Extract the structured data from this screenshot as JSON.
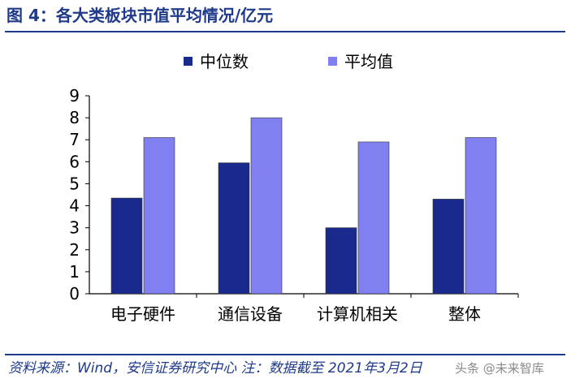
{
  "figure_title": "图 4：各大类板块市值平均情况/亿元",
  "source_note": "资料来源：Wind，安信证券研究中心  注：数据截至 2021年3月2日",
  "watermark": "头条 @未来智库",
  "colors": {
    "median": "#1a2a8c",
    "mean": "#8080f0",
    "title": "#1f3a8a"
  },
  "chart_data": {
    "type": "bar",
    "categories": [
      "电子硬件",
      "通信设备",
      "计算机相关",
      "整体"
    ],
    "series": [
      {
        "name": "中位数",
        "values": [
          4.35,
          5.95,
          3.0,
          4.3
        ]
      },
      {
        "name": "平均值",
        "values": [
          7.1,
          8.0,
          6.9,
          7.1
        ]
      }
    ],
    "ylim": [
      0,
      9
    ],
    "yticks": [
      "0",
      "1",
      "2",
      "3",
      "4",
      "5",
      "6",
      "7",
      "8",
      "9"
    ],
    "legend_position": "top-center",
    "grid": false
  }
}
